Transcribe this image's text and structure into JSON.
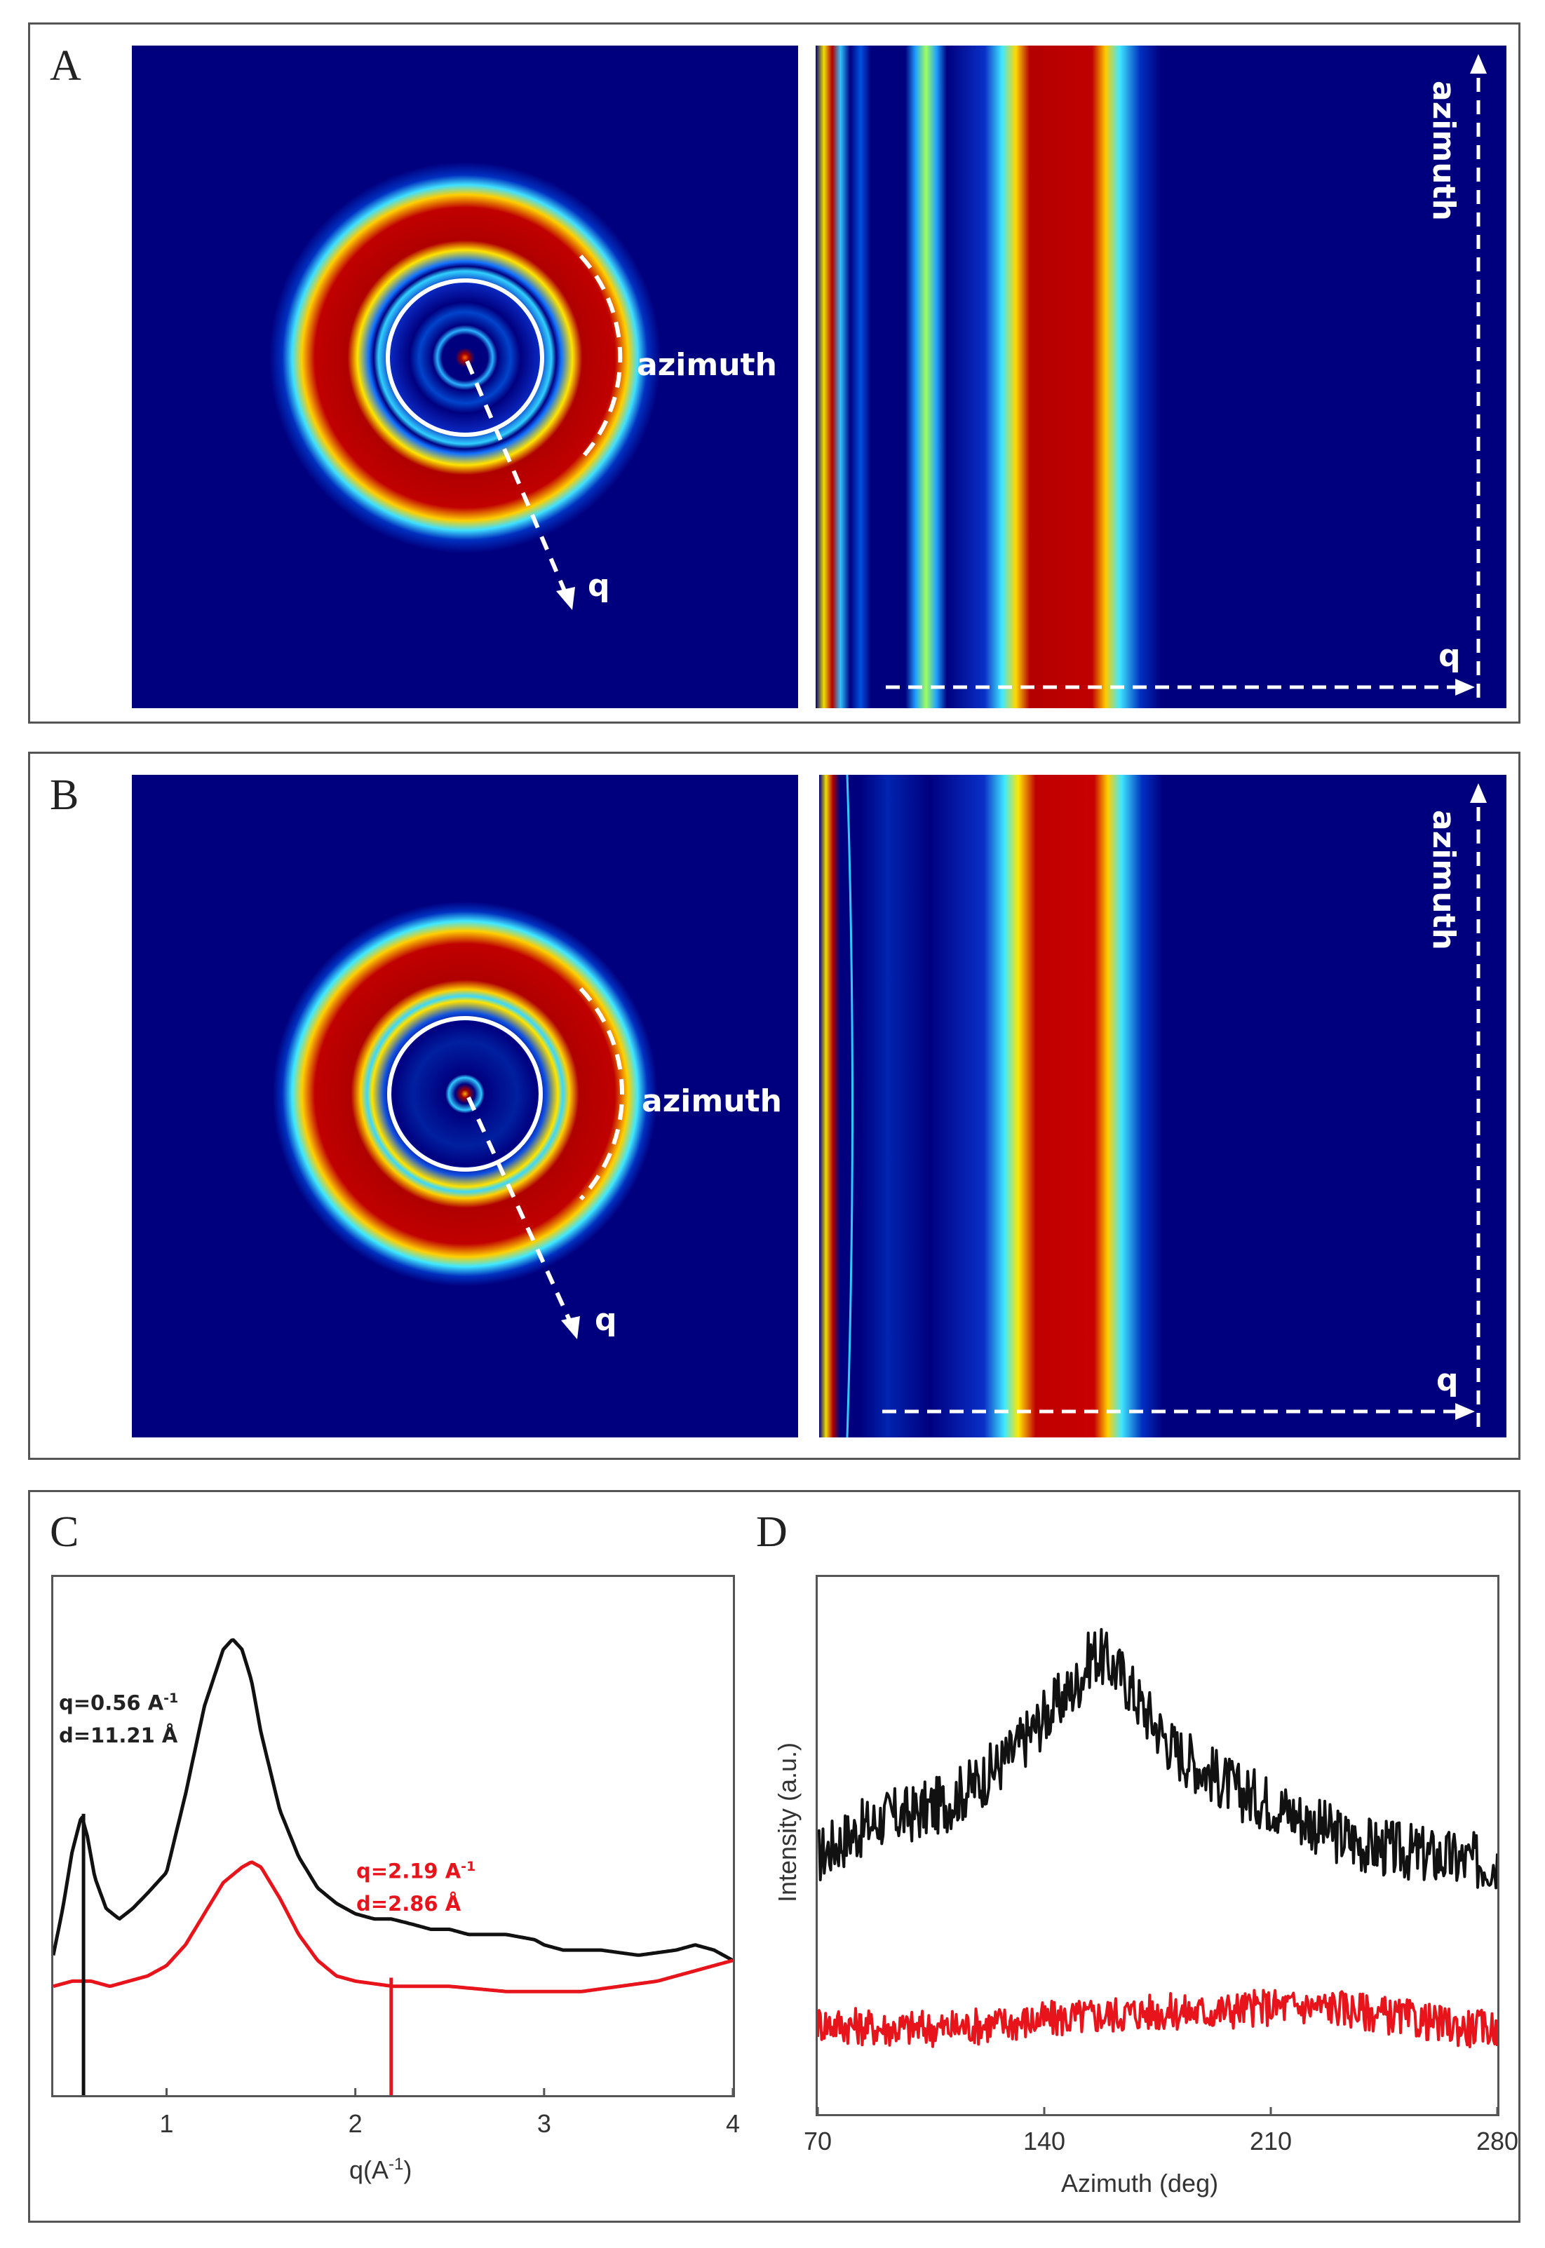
{
  "panels": {
    "A": {
      "letter": "A",
      "ring_label": "azimuth",
      "radial_label": "q",
      "unwrapped_vertical_label": "azimuth",
      "unwrapped_horizontal_label": "q"
    },
    "B": {
      "letter": "B",
      "ring_label": "azimuth",
      "radial_label": "q",
      "unwrapped_vertical_label": "azimuth",
      "unwrapped_horizontal_label": "q"
    },
    "C": {
      "letter": "C",
      "xlabel": "q(A",
      "xlabel_exp": "-1",
      "xlabel_close": ")",
      "ann_black_q": "q=0.56 A",
      "ann_black_q_exp": "-1",
      "ann_black_d": "d=11.21 Å",
      "ann_red_q": "q=2.19 A",
      "ann_red_q_exp": "-1",
      "ann_red_d": "d=2.86 Å"
    },
    "D": {
      "letter": "D",
      "xlabel": "Azimuth (deg)",
      "ylabel": "Intensity (a.u.)"
    }
  },
  "colors": {
    "background_blue": "#00007f",
    "black_series": "#111111",
    "red_series": "#e8141c"
  },
  "chart_data": [
    {
      "id": "C",
      "type": "line",
      "title": "",
      "xlabel": "q(A^-1)",
      "ylabel": "",
      "xlim": [
        0.4,
        4.0
      ],
      "ylim": [
        0,
        1
      ],
      "xticks": [
        "1",
        "2",
        "3",
        "4"
      ],
      "xtick_values": [
        1,
        2,
        3,
        4
      ],
      "series": [
        {
          "name": "black",
          "x": [
            0.4,
            0.45,
            0.5,
            0.55,
            0.58,
            0.62,
            0.68,
            0.75,
            0.82,
            0.9,
            1.0,
            1.1,
            1.2,
            1.3,
            1.35,
            1.4,
            1.45,
            1.5,
            1.6,
            1.7,
            1.8,
            1.9,
            2.0,
            2.1,
            2.19,
            2.3,
            2.4,
            2.5,
            2.6,
            2.8,
            2.95,
            3.0,
            3.1,
            3.3,
            3.5,
            3.7,
            3.8,
            3.9,
            4.0
          ],
          "y": [
            0.27,
            0.36,
            0.47,
            0.54,
            0.5,
            0.42,
            0.36,
            0.34,
            0.36,
            0.39,
            0.43,
            0.58,
            0.75,
            0.86,
            0.88,
            0.86,
            0.8,
            0.7,
            0.55,
            0.46,
            0.4,
            0.37,
            0.35,
            0.34,
            0.34,
            0.33,
            0.32,
            0.32,
            0.31,
            0.31,
            0.3,
            0.29,
            0.28,
            0.28,
            0.27,
            0.28,
            0.29,
            0.28,
            0.26
          ]
        },
        {
          "name": "red",
          "x": [
            0.4,
            0.5,
            0.6,
            0.7,
            0.8,
            0.9,
            1.0,
            1.1,
            1.2,
            1.3,
            1.4,
            1.45,
            1.5,
            1.6,
            1.7,
            1.8,
            1.9,
            2.0,
            2.2,
            2.5,
            2.8,
            3.0,
            3.2,
            3.4,
            3.6,
            3.8,
            3.9,
            4.0
          ],
          "y": [
            0.21,
            0.22,
            0.22,
            0.21,
            0.22,
            0.23,
            0.25,
            0.29,
            0.35,
            0.41,
            0.44,
            0.45,
            0.44,
            0.38,
            0.31,
            0.26,
            0.23,
            0.22,
            0.21,
            0.21,
            0.2,
            0.2,
            0.2,
            0.21,
            0.22,
            0.24,
            0.25,
            0.26
          ]
        }
      ],
      "markers": [
        {
          "name": "black",
          "x": 0.56
        },
        {
          "name": "red",
          "x": 2.19
        }
      ]
    },
    {
      "id": "D",
      "type": "line",
      "title": "",
      "xlabel": "Azimuth (deg)",
      "ylabel": "Intensity (a.u.)",
      "xlim": [
        70,
        280
      ],
      "ylim": [
        0,
        1
      ],
      "xticks": [
        "70",
        "140",
        "210",
        "280"
      ],
      "xtick_values": [
        70,
        140,
        210,
        280
      ],
      "series": [
        {
          "name": "black",
          "x": [
            70,
            80,
            90,
            100,
            110,
            120,
            130,
            140,
            150,
            155,
            160,
            165,
            170,
            180,
            190,
            200,
            210,
            220,
            230,
            240,
            250,
            260,
            270,
            280
          ],
          "y": [
            0.48,
            0.52,
            0.55,
            0.56,
            0.58,
            0.62,
            0.67,
            0.74,
            0.8,
            0.86,
            0.84,
            0.81,
            0.76,
            0.68,
            0.64,
            0.6,
            0.58,
            0.55,
            0.52,
            0.5,
            0.49,
            0.48,
            0.47,
            0.47
          ],
          "noise": 0.055
        },
        {
          "name": "red",
          "x": [
            70,
            90,
            110,
            130,
            150,
            170,
            190,
            210,
            230,
            250,
            270,
            280
          ],
          "y": [
            0.17,
            0.16,
            0.16,
            0.17,
            0.18,
            0.19,
            0.19,
            0.2,
            0.2,
            0.18,
            0.16,
            0.16
          ],
          "noise": 0.035
        }
      ]
    }
  ]
}
